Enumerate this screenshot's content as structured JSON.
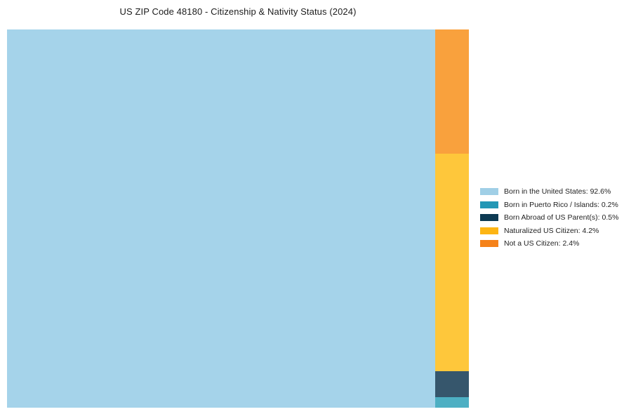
{
  "title": "US ZIP Code 48180 - Citizenship & Nativity Status (2024)",
  "background_color": "#FFFFFF",
  "chart_data": {
    "type": "treemap",
    "title": "US ZIP Code 48180 - Citizenship & Nativity Status (2024)",
    "unit": "%",
    "legend_position": "right",
    "categories": [
      "Born in the United States",
      "Born in Puerto Rico / Islands",
      "Born Abroad of US Parent(s)",
      "Naturalized US Citizen",
      "Not a US Citizen"
    ],
    "values": [
      92.6,
      0.2,
      0.5,
      4.2,
      2.4
    ],
    "legend_labels": [
      "Born in the United States: 92.6%",
      "Born in Puerto Rico / Islands: 0.2%",
      "Born Abroad of US Parent(s): 0.5%",
      "Naturalized US Citizen: 4.2%",
      "Not a US Citizen: 2.4%"
    ],
    "legend_swatch_colors": [
      "#A0CFE6",
      "#2397B5",
      "#0D3A53",
      "#FDB514",
      "#F5821A"
    ],
    "tile_fill_colors": [
      "#A5D3EA",
      "#4DAFC3",
      "#36566C",
      "#FEC73B",
      "#F9A13D"
    ],
    "tile_order_right_column_top_to_bottom": [
      "Not a US Citizen",
      "Naturalized US Citizen",
      "Born Abroad of US Parent(s)",
      "Born in Puerto Rico / Islands"
    ]
  }
}
